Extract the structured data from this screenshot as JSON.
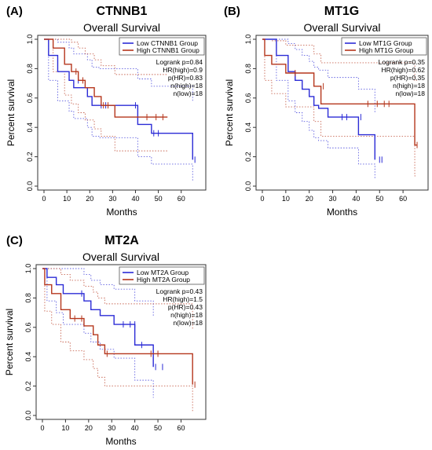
{
  "panels": [
    {
      "letter": "(A)",
      "gene": "CTNNB1",
      "chart_data": {
        "type": "line",
        "title": "Overall Survival",
        "xlabel": "Months",
        "ylabel": "Percent survival",
        "xlim": [
          0,
          68
        ],
        "ylim": [
          0,
          1
        ],
        "xticks": [
          0,
          10,
          20,
          30,
          40,
          50,
          60
        ],
        "yticks": [
          "0.0",
          "0.2",
          "0.4",
          "0.6",
          "0.8",
          "1.0"
        ],
        "legend": [
          "Low CTNNB1 Group",
          "High CTNNB1 Group"
        ],
        "stats": [
          "Logrank p=0.84",
          "HR(high)=0.9",
          "p(HR)=0.83",
          "n(high)=18",
          "n(low)=18"
        ],
        "series": [
          {
            "name": "Low CTNNB1 Group",
            "color": "#2b2bd6",
            "x": [
              0,
              2,
              6,
              11,
              13,
              16,
              19,
              21,
              24,
              27,
              41,
              47,
              65
            ],
            "y": [
              1.0,
              0.89,
              0.78,
              0.72,
              0.67,
              0.67,
              0.61,
              0.55,
              0.55,
              0.55,
              0.42,
              0.36,
              0.18
            ],
            "upper": [
              1.0,
              1.0,
              0.98,
              0.94,
              0.9,
              0.9,
              0.86,
              0.81,
              0.8,
              0.8,
              0.73,
              0.68,
              0.58
            ],
            "lower": [
              1.0,
              0.72,
              0.58,
              0.51,
              0.46,
              0.46,
              0.4,
              0.34,
              0.33,
              0.33,
              0.2,
              0.15,
              0.03
            ],
            "censor_x": [
              15,
              25,
              27,
              40,
              48,
              50,
              66
            ],
            "censor_y": [
              0.72,
              0.55,
              0.55,
              0.55,
              0.36,
              0.36,
              0.18
            ]
          },
          {
            "name": "High CTNNB1 Group",
            "color": "#b5361c",
            "x": [
              0,
              4,
              9,
              12,
              15,
              18,
              22,
              25,
              31,
              54
            ],
            "y": [
              1.0,
              0.94,
              0.83,
              0.78,
              0.72,
              0.67,
              0.61,
              0.55,
              0.47,
              0.47
            ],
            "upper": [
              1.0,
              1.0,
              1.0,
              0.98,
              0.94,
              0.9,
              0.86,
              0.82,
              0.76,
              0.76
            ],
            "lower": [
              1.0,
              0.78,
              0.62,
              0.56,
              0.5,
              0.45,
              0.39,
              0.34,
              0.24,
              0.24
            ],
            "censor_x": [
              14,
              17,
              26,
              28,
              45,
              49,
              52
            ],
            "censor_y": [
              0.78,
              0.72,
              0.55,
              0.55,
              0.47,
              0.47,
              0.47
            ]
          }
        ]
      }
    },
    {
      "letter": "(B)",
      "gene": "MT1G",
      "chart_data": {
        "type": "line",
        "title": "Overall Survival",
        "xlabel": "Months",
        "ylabel": "Percent survival",
        "xlim": [
          0,
          68
        ],
        "ylim": [
          0,
          1
        ],
        "xticks": [
          0,
          10,
          20,
          30,
          40,
          50,
          60
        ],
        "yticks": [
          "0.0",
          "0.2",
          "0.4",
          "0.6",
          "0.8",
          "1.0"
        ],
        "legend": [
          "Low MT1G Group",
          "High MT1G Group"
        ],
        "stats": [
          "Logrank p=0.35",
          "HR(high)=0.62",
          "p(HR)=0.35",
          "n(high)=18",
          "n(low)=18"
        ],
        "series": [
          {
            "name": "Low MT1G Group",
            "color": "#2b2bd6",
            "x": [
              0,
              6,
              11,
              14,
              17,
              20,
              22,
              24,
              28,
              33,
              41,
              48
            ],
            "y": [
              1.0,
              0.89,
              0.78,
              0.72,
              0.66,
              0.61,
              0.55,
              0.53,
              0.47,
              0.47,
              0.35,
              0.18
            ],
            "upper": [
              1.0,
              1.0,
              0.97,
              0.93,
              0.89,
              0.85,
              0.81,
              0.79,
              0.74,
              0.74,
              0.66,
              0.5
            ],
            "lower": [
              1.0,
              0.72,
              0.58,
              0.5,
              0.44,
              0.38,
              0.33,
              0.31,
              0.26,
              0.26,
              0.15,
              0.05
            ],
            "censor_x": [
              34,
              36,
              42,
              50,
              51
            ],
            "censor_y": [
              0.47,
              0.47,
              0.47,
              0.18,
              0.18
            ]
          },
          {
            "name": "High MT1G Group",
            "color": "#b5361c",
            "x": [
              0,
              1,
              4,
              10,
              22,
              25,
              65,
              66
            ],
            "y": [
              1.0,
              0.89,
              0.83,
              0.77,
              0.68,
              0.56,
              0.28,
              0.28
            ],
            "upper": [
              1.0,
              1.0,
              0.99,
              0.96,
              0.9,
              0.84,
              0.72,
              0.72
            ],
            "lower": [
              1.0,
              0.72,
              0.63,
              0.54,
              0.44,
              0.34,
              0.07,
              0.07
            ],
            "censor_x": [
              14,
              26,
              45,
              49,
              52,
              54,
              66
            ],
            "censor_y": [
              0.77,
              0.68,
              0.56,
              0.56,
              0.56,
              0.56,
              0.28
            ]
          }
        ]
      }
    },
    {
      "letter": "(C)",
      "gene": "MT2A",
      "chart_data": {
        "type": "line",
        "title": "Overall Survival",
        "xlabel": "Months",
        "ylabel": "Percent survival",
        "xlim": [
          0,
          68
        ],
        "ylim": [
          0,
          1
        ],
        "xticks": [
          0,
          10,
          20,
          30,
          40,
          50,
          60
        ],
        "yticks": [
          "0.0",
          "0.2",
          "0.4",
          "0.6",
          "0.8",
          "1.0"
        ],
        "legend": [
          "Low MT2A Group",
          "High MT2A Group"
        ],
        "stats": [
          "Logrank p=0.43",
          "HR(high)=1.5",
          "p(HR)=0.43",
          "n(high)=18",
          "n(low)=18"
        ],
        "series": [
          {
            "name": "Low MT2A Group",
            "color": "#2b2bd6",
            "x": [
              0,
              2,
              6,
              9,
              12,
              18,
              21,
              25,
              31,
              40,
              48
            ],
            "y": [
              1.0,
              0.94,
              0.89,
              0.83,
              0.83,
              0.78,
              0.72,
              0.68,
              0.62,
              0.48,
              0.33
            ],
            "upper": [
              1.0,
              1.0,
              1.0,
              1.0,
              1.0,
              0.96,
              0.92,
              0.89,
              0.86,
              0.78,
              0.68
            ],
            "lower": [
              1.0,
              0.78,
              0.7,
              0.62,
              0.62,
              0.56,
              0.5,
              0.45,
              0.39,
              0.24,
              0.12
            ],
            "censor_x": [
              17,
              35,
              38,
              40,
              43,
              49,
              52
            ],
            "censor_y": [
              0.83,
              0.62,
              0.62,
              0.62,
              0.48,
              0.33,
              0.33
            ]
          },
          {
            "name": "High MT2A Group",
            "color": "#b5361c",
            "x": [
              0,
              1,
              4,
              8,
              12,
              18,
              22,
              24,
              27,
              65
            ],
            "y": [
              1.0,
              0.89,
              0.83,
              0.72,
              0.66,
              0.61,
              0.55,
              0.48,
              0.42,
              0.21
            ],
            "upper": [
              1.0,
              1.0,
              1.0,
              0.96,
              0.92,
              0.88,
              0.84,
              0.8,
              0.76,
              0.59
            ],
            "lower": [
              1.0,
              0.71,
              0.62,
              0.5,
              0.44,
              0.38,
              0.32,
              0.26,
              0.2,
              0.03
            ],
            "censor_x": [
              14,
              17,
              28,
              47,
              50,
              66
            ],
            "censor_y": [
              0.66,
              0.66,
              0.42,
              0.42,
              0.42,
              0.21
            ]
          }
        ]
      }
    }
  ]
}
